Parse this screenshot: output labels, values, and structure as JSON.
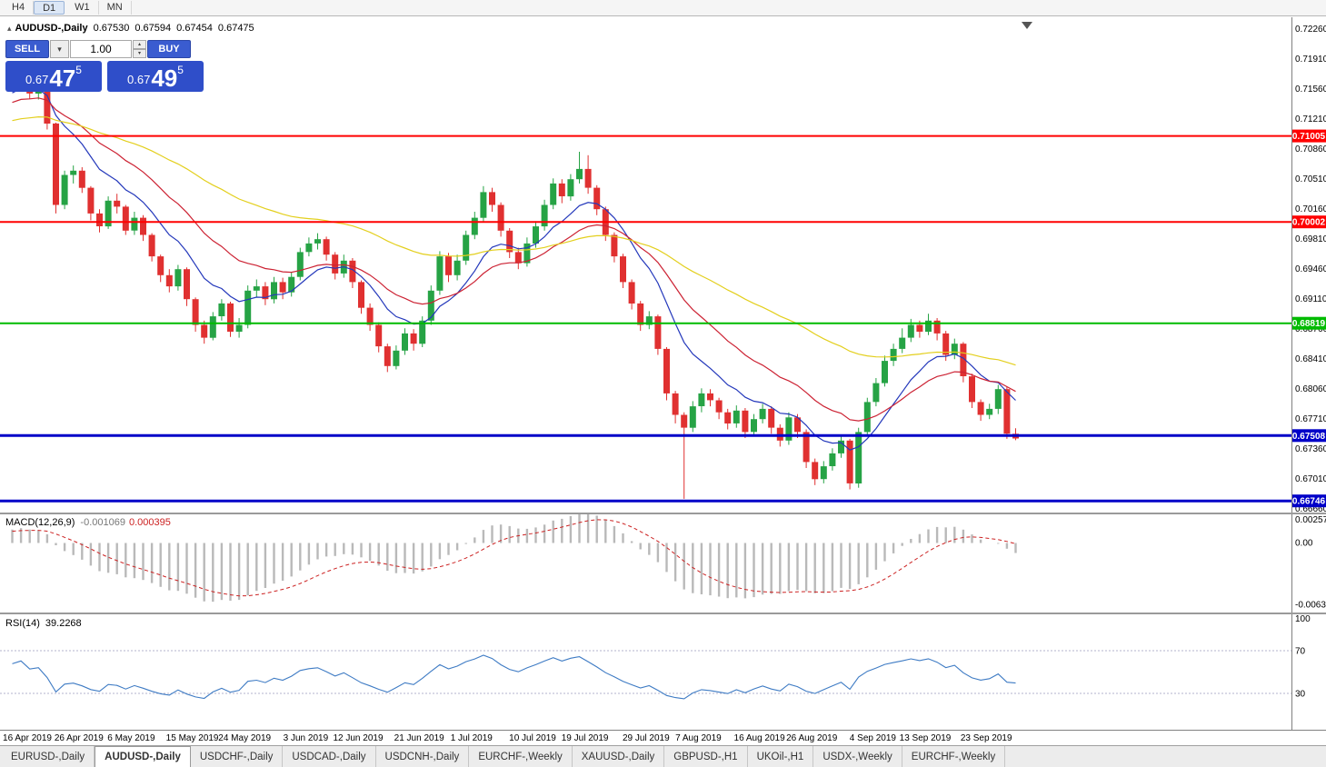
{
  "toolbar": {
    "timeframes": [
      {
        "label": "H4",
        "active": false
      },
      {
        "label": "D1",
        "active": true
      },
      {
        "label": "W1",
        "active": false
      },
      {
        "label": "MN",
        "active": false
      }
    ]
  },
  "icons": {
    "collapse": "▴",
    "dropdown": "▾",
    "spin_up": "▴",
    "spin_down": "▾"
  },
  "chart_header": {
    "title": "AUDUSD-,Daily",
    "open": "0.67530",
    "high": "0.67594",
    "low": "0.67454",
    "close": "0.67475"
  },
  "trade_panel": {
    "sell_label": "SELL",
    "buy_label": "BUY",
    "volume": "1.00",
    "sell_price": {
      "small": "0.67",
      "big": "47",
      "sup": "5"
    },
    "buy_price": {
      "small": "0.67",
      "big": "49",
      "sup": "5"
    }
  },
  "indicators": {
    "macd": {
      "label": "MACD(12,26,9)",
      "value_main": "-0.001069",
      "value_signal": "0.000395",
      "axis": [
        "0.002574",
        "0.00",
        "-0.006324"
      ]
    },
    "rsi": {
      "label": "RSI(14)",
      "value": "39.2268",
      "axis": [
        "100",
        "70",
        "30"
      ],
      "levels": [
        70,
        30
      ]
    }
  },
  "tabs": [
    {
      "label": "EURUSD-,Daily",
      "active": false
    },
    {
      "label": "AUDUSD-,Daily",
      "active": true
    },
    {
      "label": "USDCHF-,Daily",
      "active": false
    },
    {
      "label": "USDCAD-,Daily",
      "active": false
    },
    {
      "label": "USDCNH-,Daily",
      "active": false
    },
    {
      "label": "EURCHF-,Weekly",
      "active": false
    },
    {
      "label": "XAUUSD-,Daily",
      "active": false
    },
    {
      "label": "GBPUSD-,H1",
      "active": false
    },
    {
      "label": "UKOil-,H1",
      "active": false
    },
    {
      "label": "USDX-,Weekly",
      "active": false
    },
    {
      "label": "EURCHF-,Weekly",
      "active": false
    }
  ],
  "chart_data": {
    "type": "candlestick",
    "symbol": "AUDUSD-",
    "timeframe": "Daily",
    "y_range": [
      0.6661,
      0.7239
    ],
    "macd_range": [
      -0.0068,
      0.0028
    ],
    "colors": {
      "up": "#26a345",
      "down": "#e03030"
    },
    "moving_averages": [
      {
        "period": 10,
        "method": "ema",
        "color": "#2438bb"
      },
      {
        "period": 21,
        "method": "ema",
        "color": "#cc2233"
      },
      {
        "period": 55,
        "method": "ema",
        "color": "#e3cf1d"
      }
    ],
    "horizontal_lines": [
      {
        "price": 0.71005,
        "label": "0.71005",
        "color": "#ff0000",
        "width": 2
      },
      {
        "price": 0.70002,
        "label": "0.70002",
        "color": "#ff0000",
        "width": 2
      },
      {
        "price": 0.68819,
        "label": "0.68819",
        "color": "#00bb00",
        "width": 2
      },
      {
        "price": 0.67508,
        "label": "0.67508",
        "color": "#0000c8",
        "width": 3
      },
      {
        "price": 0.66746,
        "label": "0.66746",
        "color": "#0000c8",
        "width": 3
      }
    ],
    "y_ticks": [
      "0.72260",
      "0.71910",
      "0.71560",
      "0.71210",
      "0.70860",
      "0.70510",
      "0.70160",
      "0.69810",
      "0.69460",
      "0.69110",
      "0.68760",
      "0.68410",
      "0.68060",
      "0.67710",
      "0.67360",
      "0.67010",
      "0.66660"
    ],
    "x_ticks": [
      {
        "i": 1,
        "label": "16 Apr 2019"
      },
      {
        "i": 8,
        "label": "26 Apr 2019"
      },
      {
        "i": 14,
        "label": "6 May 2019"
      },
      {
        "i": 21,
        "label": "15 May 2019"
      },
      {
        "i": 27,
        "label": "24 May 2019"
      },
      {
        "i": 34,
        "label": "3 Jun 2019"
      },
      {
        "i": 40,
        "label": "12 Jun 2019"
      },
      {
        "i": 47,
        "label": "21 Jun 2019"
      },
      {
        "i": 53,
        "label": "1 Jul 2019"
      },
      {
        "i": 60,
        "label": "10 Jul 2019"
      },
      {
        "i": 66,
        "label": "19 Jul 2019"
      },
      {
        "i": 73,
        "label": "29 Jul 2019"
      },
      {
        "i": 79,
        "label": "7 Aug 2019"
      },
      {
        "i": 86,
        "label": "16 Aug 2019"
      },
      {
        "i": 92,
        "label": "26 Aug 2019"
      },
      {
        "i": 99,
        "label": "4 Sep 2019"
      },
      {
        "i": 105,
        "label": "13 Sep 2019"
      },
      {
        "i": 112,
        "label": "23 Sep 2019"
      }
    ],
    "warmup_closes": [
      0.708,
      0.7095,
      0.711,
      0.709,
      0.7075,
      0.706,
      0.7085,
      0.71,
      0.7115,
      0.7105,
      0.709,
      0.707,
      0.7055,
      0.704,
      0.706,
      0.708,
      0.7095,
      0.711,
      0.7125,
      0.711,
      0.7095,
      0.708,
      0.71,
      0.712,
      0.7135,
      0.712,
      0.7105,
      0.709,
      0.711,
      0.713,
      0.7145,
      0.713,
      0.7115,
      0.71,
      0.712,
      0.714,
      0.7155,
      0.714,
      0.7125,
      0.711,
      0.713,
      0.715,
      0.7165,
      0.715,
      0.7135,
      0.712,
      0.714,
      0.7155,
      0.717,
      0.716
    ],
    "ohlc": [
      [
        0.716,
        0.7172,
        0.7154,
        0.7165
      ],
      [
        0.7165,
        0.7184,
        0.716,
        0.7178
      ],
      [
        0.7178,
        0.718,
        0.7144,
        0.715
      ],
      [
        0.715,
        0.7164,
        0.7143,
        0.7156
      ],
      [
        0.7156,
        0.7158,
        0.7108,
        0.7115
      ],
      [
        0.7115,
        0.7116,
        0.701,
        0.702
      ],
      [
        0.702,
        0.706,
        0.7015,
        0.7055
      ],
      [
        0.7055,
        0.7066,
        0.7045,
        0.706
      ],
      [
        0.706,
        0.7064,
        0.7034,
        0.704
      ],
      [
        0.704,
        0.7042,
        0.7002,
        0.701
      ],
      [
        0.701,
        0.7015,
        0.6988,
        0.6995
      ],
      [
        0.6995,
        0.703,
        0.6992,
        0.7025
      ],
      [
        0.7025,
        0.7033,
        0.701,
        0.7018
      ],
      [
        0.7018,
        0.702,
        0.6985,
        0.699
      ],
      [
        0.699,
        0.7012,
        0.6985,
        0.7005
      ],
      [
        0.7005,
        0.7008,
        0.6978,
        0.6985
      ],
      [
        0.6985,
        0.6987,
        0.6954,
        0.696
      ],
      [
        0.696,
        0.6962,
        0.693,
        0.6938
      ],
      [
        0.6938,
        0.6945,
        0.6918,
        0.6925
      ],
      [
        0.6925,
        0.695,
        0.692,
        0.6945
      ],
      [
        0.6945,
        0.6947,
        0.6902,
        0.691
      ],
      [
        0.691,
        0.6912,
        0.6872,
        0.688
      ],
      [
        0.688,
        0.6885,
        0.6858,
        0.6865
      ],
      [
        0.6865,
        0.6895,
        0.6862,
        0.689
      ],
      [
        0.689,
        0.691,
        0.6885,
        0.6905
      ],
      [
        0.6905,
        0.6907,
        0.6866,
        0.6872
      ],
      [
        0.6872,
        0.6888,
        0.6865,
        0.688
      ],
      [
        0.688,
        0.6926,
        0.6876,
        0.692
      ],
      [
        0.692,
        0.6933,
        0.6912,
        0.6925
      ],
      [
        0.6925,
        0.693,
        0.6903,
        0.691
      ],
      [
        0.691,
        0.6936,
        0.6905,
        0.693
      ],
      [
        0.693,
        0.6935,
        0.691,
        0.6918
      ],
      [
        0.6918,
        0.6942,
        0.6913,
        0.6936
      ],
      [
        0.6936,
        0.697,
        0.6932,
        0.6965
      ],
      [
        0.6965,
        0.6982,
        0.696,
        0.6975
      ],
      [
        0.6975,
        0.6987,
        0.6968,
        0.698
      ],
      [
        0.698,
        0.6983,
        0.6955,
        0.6962
      ],
      [
        0.6962,
        0.6965,
        0.6933,
        0.694
      ],
      [
        0.694,
        0.6962,
        0.6935,
        0.6955
      ],
      [
        0.6955,
        0.6958,
        0.6923,
        0.693
      ],
      [
        0.693,
        0.6932,
        0.6893,
        0.69
      ],
      [
        0.69,
        0.6905,
        0.6873,
        0.688
      ],
      [
        0.688,
        0.6883,
        0.6848,
        0.6855
      ],
      [
        0.6855,
        0.6858,
        0.6825,
        0.6832
      ],
      [
        0.6832,
        0.6856,
        0.6828,
        0.685
      ],
      [
        0.685,
        0.6876,
        0.6845,
        0.687
      ],
      [
        0.687,
        0.6875,
        0.685,
        0.6858
      ],
      [
        0.6858,
        0.689,
        0.6854,
        0.6885
      ],
      [
        0.6885,
        0.6926,
        0.688,
        0.692
      ],
      [
        0.692,
        0.6966,
        0.6915,
        0.696
      ],
      [
        0.696,
        0.6964,
        0.693,
        0.6938
      ],
      [
        0.6938,
        0.6962,
        0.6932,
        0.6955
      ],
      [
        0.6955,
        0.699,
        0.695,
        0.6985
      ],
      [
        0.6985,
        0.7012,
        0.698,
        0.7005
      ],
      [
        0.7005,
        0.7042,
        0.7,
        0.7035
      ],
      [
        0.7035,
        0.704,
        0.7012,
        0.702
      ],
      [
        0.702,
        0.7023,
        0.6983,
        0.699
      ],
      [
        0.699,
        0.6993,
        0.6958,
        0.6965
      ],
      [
        0.6965,
        0.697,
        0.6945,
        0.6952
      ],
      [
        0.6952,
        0.6982,
        0.6948,
        0.6975
      ],
      [
        0.6975,
        0.7001,
        0.697,
        0.6995
      ],
      [
        0.6995,
        0.7026,
        0.699,
        0.702
      ],
      [
        0.702,
        0.7051,
        0.7015,
        0.7045
      ],
      [
        0.7045,
        0.705,
        0.7022,
        0.703
      ],
      [
        0.703,
        0.7056,
        0.7025,
        0.705
      ],
      [
        0.705,
        0.7082,
        0.7045,
        0.7062
      ],
      [
        0.7062,
        0.7078,
        0.7033,
        0.704
      ],
      [
        0.704,
        0.7043,
        0.7008,
        0.7015
      ],
      [
        0.7015,
        0.7018,
        0.6978,
        0.6985
      ],
      [
        0.6985,
        0.6988,
        0.6953,
        0.696
      ],
      [
        0.696,
        0.6963,
        0.6923,
        0.693
      ],
      [
        0.693,
        0.6933,
        0.6898,
        0.6905
      ],
      [
        0.6905,
        0.6908,
        0.6873,
        0.688
      ],
      [
        0.688,
        0.6896,
        0.6875,
        0.689
      ],
      [
        0.689,
        0.6892,
        0.6845,
        0.6852
      ],
      [
        0.6852,
        0.6854,
        0.6792,
        0.68
      ],
      [
        0.68,
        0.6803,
        0.6765,
        0.6775
      ],
      [
        0.6775,
        0.6778,
        0.6677,
        0.676
      ],
      [
        0.676,
        0.6791,
        0.6755,
        0.6785
      ],
      [
        0.6785,
        0.6806,
        0.6778,
        0.68
      ],
      [
        0.68,
        0.6805,
        0.6785,
        0.6792
      ],
      [
        0.6792,
        0.6795,
        0.677,
        0.6778
      ],
      [
        0.6778,
        0.6782,
        0.6758,
        0.6765
      ],
      [
        0.6765,
        0.6786,
        0.676,
        0.678
      ],
      [
        0.678,
        0.6783,
        0.6748,
        0.6755
      ],
      [
        0.6755,
        0.6776,
        0.675,
        0.677
      ],
      [
        0.677,
        0.6788,
        0.6765,
        0.6782
      ],
      [
        0.6782,
        0.6785,
        0.6753,
        0.676
      ],
      [
        0.676,
        0.6764,
        0.6738,
        0.6745
      ],
      [
        0.6745,
        0.6778,
        0.674,
        0.6772
      ],
      [
        0.6772,
        0.6776,
        0.6748,
        0.6755
      ],
      [
        0.6755,
        0.6758,
        0.6713,
        0.672
      ],
      [
        0.672,
        0.6724,
        0.6693,
        0.67
      ],
      [
        0.67,
        0.6721,
        0.6695,
        0.6715
      ],
      [
        0.6715,
        0.6736,
        0.671,
        0.673
      ],
      [
        0.673,
        0.675,
        0.6725,
        0.6745
      ],
      [
        0.6745,
        0.6747,
        0.6688,
        0.6695
      ],
      [
        0.6695,
        0.676,
        0.669,
        0.6755
      ],
      [
        0.6755,
        0.6795,
        0.675,
        0.679
      ],
      [
        0.679,
        0.6818,
        0.6785,
        0.6812
      ],
      [
        0.6812,
        0.6844,
        0.6808,
        0.6838
      ],
      [
        0.6838,
        0.6858,
        0.6832,
        0.6852
      ],
      [
        0.6852,
        0.6876,
        0.6847,
        0.6865
      ],
      [
        0.6865,
        0.6887,
        0.686,
        0.688
      ],
      [
        0.688,
        0.6885,
        0.6865,
        0.6872
      ],
      [
        0.6872,
        0.6893,
        0.6868,
        0.6885
      ],
      [
        0.6885,
        0.6888,
        0.6862,
        0.687
      ],
      [
        0.687,
        0.6873,
        0.6838,
        0.6845
      ],
      [
        0.6845,
        0.6864,
        0.684,
        0.6858
      ],
      [
        0.6858,
        0.686,
        0.6813,
        0.682
      ],
      [
        0.682,
        0.6823,
        0.6783,
        0.679
      ],
      [
        0.679,
        0.6793,
        0.6768,
        0.6775
      ],
      [
        0.6775,
        0.6788,
        0.677,
        0.6782
      ],
      [
        0.6782,
        0.681,
        0.6776,
        0.6805
      ],
      [
        0.6805,
        0.6808,
        0.6747,
        0.6753
      ],
      [
        0.6753,
        0.67594,
        0.67454,
        0.67475
      ]
    ]
  }
}
